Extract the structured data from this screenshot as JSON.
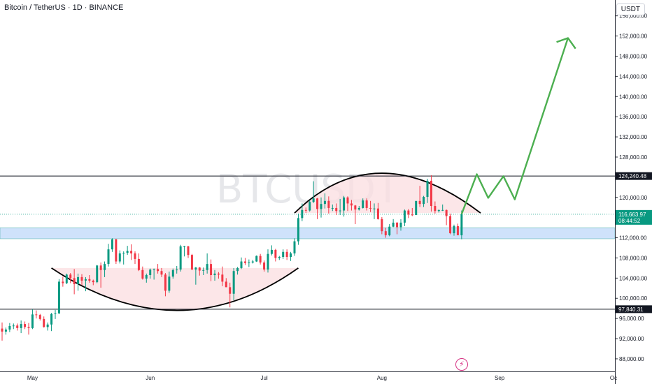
{
  "header": {
    "title": "Bitcoin / TetherUS · 1D · BINANCE",
    "currency": "USDT"
  },
  "watermark": "BTCUSDT",
  "colors": {
    "up": "#089981",
    "down": "#f23645",
    "resistance": "#131722",
    "support_zone": "#cfe2fb",
    "cup_fill": "#fbdde0",
    "projection": "#4caf50",
    "current_tag": "#089981"
  },
  "chart_data": {
    "type": "candlestick",
    "symbol": "BTCUSDT",
    "interval": "1D",
    "exchange": "BINANCE",
    "ylim": [
      85500,
      159000
    ],
    "y_ticks": [
      "88,000.00",
      "92,000.00",
      "96,000.00",
      "100,000.00",
      "104,000.00",
      "108,000.00",
      "112,000.00",
      "116,000.00",
      "120,000.00",
      "124,000.00",
      "128,000.00",
      "132,000.00",
      "136,000.00",
      "140,000.00",
      "144,000.00",
      "148,000.00",
      "152,000.00",
      "156,000.00"
    ],
    "x_ticks": [
      {
        "date": "2025-05-01",
        "label": "May"
      },
      {
        "date": "2025-06-01",
        "label": "Jun"
      },
      {
        "date": "2025-07-01",
        "label": "Jul"
      },
      {
        "date": "2025-08-01",
        "label": "Aug"
      },
      {
        "date": "2025-09-01",
        "label": "Sep"
      },
      {
        "date": "2025-10-01",
        "label": "Oc"
      }
    ],
    "xlim": [
      "2025-04-23",
      "2025-10-01"
    ],
    "candles": [
      [
        "2025-04-23",
        94000,
        95200,
        91600,
        93400
      ],
      [
        "2025-04-24",
        93400,
        94200,
        92800,
        93800
      ],
      [
        "2025-04-25",
        93800,
        95100,
        93300,
        94500
      ],
      [
        "2025-04-26",
        94500,
        95000,
        93900,
        94600
      ],
      [
        "2025-04-27",
        94600,
        95000,
        93600,
        94100
      ],
      [
        "2025-04-28",
        94100,
        95600,
        93100,
        94900
      ],
      [
        "2025-04-29",
        94900,
        95400,
        93900,
        94300
      ],
      [
        "2025-04-30",
        94300,
        95100,
        92800,
        94100
      ],
      [
        "2025-05-01",
        94100,
        97800,
        93900,
        96800
      ],
      [
        "2025-05-02",
        96800,
        97600,
        96000,
        96700
      ],
      [
        "2025-05-03",
        96700,
        96900,
        95600,
        95900
      ],
      [
        "2025-05-04",
        95900,
        96400,
        94200,
        94300
      ],
      [
        "2025-05-05",
        94300,
        95200,
        93600,
        94800
      ],
      [
        "2025-05-06",
        94800,
        97100,
        93500,
        96900
      ],
      [
        "2025-05-07",
        96900,
        97700,
        95900,
        97000
      ],
      [
        "2025-05-08",
        97000,
        103800,
        96900,
        103300
      ],
      [
        "2025-05-09",
        103300,
        104300,
        102300,
        103000
      ],
      [
        "2025-05-10",
        103000,
        104900,
        102800,
        104700
      ],
      [
        "2025-05-11",
        104700,
        105000,
        103000,
        104000
      ],
      [
        "2025-05-12",
        104000,
        105800,
        100800,
        102800
      ],
      [
        "2025-05-13",
        102800,
        104900,
        101500,
        104200
      ],
      [
        "2025-05-14",
        104200,
        104800,
        102600,
        103500
      ],
      [
        "2025-05-15",
        103500,
        104200,
        101400,
        103800
      ],
      [
        "2025-05-16",
        103800,
        104600,
        103100,
        103500
      ],
      [
        "2025-05-17",
        103500,
        103700,
        102600,
        103200
      ],
      [
        "2025-05-18",
        103200,
        106600,
        103000,
        106500
      ],
      [
        "2025-05-19",
        106500,
        107100,
        102100,
        105600
      ],
      [
        "2025-05-20",
        105600,
        107300,
        104200,
        106800
      ],
      [
        "2025-05-21",
        106800,
        110800,
        106300,
        109700
      ],
      [
        "2025-05-22",
        109700,
        111900,
        109200,
        111700
      ],
      [
        "2025-05-23",
        111700,
        111800,
        106800,
        107300
      ],
      [
        "2025-05-24",
        107300,
        109500,
        106900,
        108900
      ],
      [
        "2025-05-25",
        108900,
        109300,
        106700,
        109000
      ],
      [
        "2025-05-26",
        109000,
        110400,
        108600,
        109400
      ],
      [
        "2025-05-27",
        109400,
        110700,
        107600,
        108900
      ],
      [
        "2025-05-28",
        108900,
        109300,
        106800,
        107800
      ],
      [
        "2025-05-29",
        107800,
        108900,
        105400,
        105600
      ],
      [
        "2025-05-30",
        105600,
        106300,
        103700,
        103900
      ],
      [
        "2025-05-31",
        103900,
        104900,
        103100,
        104600
      ],
      [
        "2025-06-01",
        104600,
        105900,
        103900,
        105700
      ],
      [
        "2025-06-02",
        105700,
        105900,
        103700,
        105800
      ],
      [
        "2025-06-03",
        105800,
        106800,
        104900,
        105400
      ],
      [
        "2025-06-04",
        105400,
        106000,
        104200,
        104700
      ],
      [
        "2025-06-05",
        104700,
        105000,
        100400,
        101500
      ],
      [
        "2025-06-06",
        101500,
        105300,
        101100,
        104300
      ],
      [
        "2025-06-07",
        104300,
        105900,
        103900,
        105600
      ],
      [
        "2025-06-08",
        105600,
        106400,
        104900,
        105700
      ],
      [
        "2025-06-09",
        105700,
        110600,
        105300,
        110300
      ],
      [
        "2025-06-10",
        110300,
        110400,
        108300,
        110300
      ],
      [
        "2025-06-11",
        110300,
        110400,
        108000,
        108600
      ],
      [
        "2025-06-12",
        108600,
        108800,
        105600,
        105700
      ],
      [
        "2025-06-13",
        105700,
        106200,
        102700,
        106100
      ],
      [
        "2025-06-14",
        106100,
        106200,
        104500,
        105500
      ],
      [
        "2025-06-15",
        105500,
        106100,
        104600,
        105600
      ],
      [
        "2025-06-16",
        105600,
        108900,
        104900,
        106800
      ],
      [
        "2025-06-17",
        106800,
        107700,
        103400,
        104600
      ],
      [
        "2025-06-18",
        104600,
        105600,
        103500,
        104900
      ],
      [
        "2025-06-19",
        104900,
        105200,
        103900,
        104700
      ],
      [
        "2025-06-20",
        104700,
        106300,
        102400,
        103300
      ],
      [
        "2025-06-21",
        103300,
        104000,
        102200,
        102200
      ],
      [
        "2025-06-22",
        102200,
        103100,
        98200,
        100900
      ],
      [
        "2025-06-23",
        100900,
        106000,
        99600,
        105400
      ],
      [
        "2025-06-24",
        105400,
        106200,
        104700,
        106000
      ],
      [
        "2025-06-25",
        106000,
        108100,
        105800,
        107300
      ],
      [
        "2025-06-26",
        107300,
        108000,
        106600,
        107000
      ],
      [
        "2025-06-27",
        107000,
        107700,
        106200,
        107100
      ],
      [
        "2025-06-28",
        107100,
        107600,
        106900,
        107300
      ],
      [
        "2025-06-29",
        107300,
        108500,
        107200,
        108400
      ],
      [
        "2025-06-30",
        108400,
        108800,
        106700,
        107100
      ],
      [
        "2025-07-01",
        107100,
        107500,
        105300,
        105700
      ],
      [
        "2025-07-02",
        105700,
        109700,
        105100,
        108800
      ],
      [
        "2025-07-03",
        108800,
        110500,
        108500,
        109600
      ],
      [
        "2025-07-04",
        109600,
        109800,
        107300,
        108000
      ],
      [
        "2025-07-05",
        108000,
        108400,
        107600,
        108200
      ],
      [
        "2025-07-06",
        108200,
        109700,
        107800,
        109200
      ],
      [
        "2025-07-07",
        109200,
        109700,
        107600,
        108200
      ],
      [
        "2025-07-08",
        108200,
        109200,
        107400,
        108900
      ],
      [
        "2025-07-09",
        108900,
        111900,
        108400,
        111300
      ],
      [
        "2025-07-10",
        111300,
        116800,
        110600,
        115900
      ],
      [
        "2025-07-11",
        115900,
        118800,
        115300,
        117500
      ],
      [
        "2025-07-12",
        117500,
        118000,
        116900,
        117400
      ],
      [
        "2025-07-13",
        117400,
        119400,
        117200,
        119100
      ],
      [
        "2025-07-14",
        119100,
        123200,
        118900,
        119800
      ],
      [
        "2025-07-15",
        119800,
        119900,
        115700,
        117700
      ],
      [
        "2025-07-16",
        117700,
        120000,
        116000,
        118700
      ],
      [
        "2025-07-17",
        118700,
        120800,
        117800,
        119300
      ],
      [
        "2025-07-18",
        119300,
        120200,
        116800,
        117900
      ],
      [
        "2025-07-19",
        117900,
        118600,
        117300,
        117900
      ],
      [
        "2025-07-20",
        117900,
        118800,
        116500,
        117300
      ],
      [
        "2025-07-21",
        117300,
        119700,
        116500,
        117400
      ],
      [
        "2025-07-22",
        117400,
        120300,
        116200,
        120000
      ],
      [
        "2025-07-23",
        120000,
        120200,
        117300,
        118800
      ],
      [
        "2025-07-24",
        118800,
        119500,
        117400,
        118400
      ],
      [
        "2025-07-25",
        118400,
        118500,
        114700,
        117600
      ],
      [
        "2025-07-26",
        117600,
        118300,
        117400,
        117900
      ],
      [
        "2025-07-27",
        117900,
        119800,
        117800,
        119400
      ],
      [
        "2025-07-28",
        119400,
        119800,
        117400,
        117900
      ],
      [
        "2025-07-29",
        117900,
        119300,
        117100,
        117800
      ],
      [
        "2025-07-30",
        117800,
        118800,
        115700,
        117800
      ],
      [
        "2025-07-31",
        117800,
        118900,
        115600,
        115700
      ],
      [
        "2025-08-01",
        115700,
        116100,
        112700,
        113300
      ],
      [
        "2025-08-02",
        113300,
        114000,
        112000,
        112500
      ],
      [
        "2025-08-03",
        112500,
        114700,
        112300,
        114200
      ],
      [
        "2025-08-04",
        114200,
        115700,
        114100,
        115000
      ],
      [
        "2025-08-05",
        115000,
        115100,
        112700,
        114100
      ],
      [
        "2025-08-06",
        114100,
        115700,
        113400,
        115000
      ],
      [
        "2025-08-07",
        115000,
        117600,
        114300,
        117400
      ],
      [
        "2025-08-08",
        117400,
        117700,
        115900,
        116600
      ],
      [
        "2025-08-09",
        116600,
        117900,
        116300,
        116500
      ],
      [
        "2025-08-10",
        116500,
        119300,
        116500,
        119300
      ],
      [
        "2025-08-11",
        119300,
        122300,
        118100,
        118700
      ],
      [
        "2025-08-12",
        118700,
        120300,
        118100,
        120100
      ],
      [
        "2025-08-13",
        120100,
        123700,
        118900,
        123300
      ],
      [
        "2025-08-14",
        123300,
        124400,
        117200,
        118300
      ],
      [
        "2025-08-15",
        118300,
        119200,
        116800,
        117300
      ],
      [
        "2025-08-16",
        117300,
        117600,
        117000,
        117500
      ],
      [
        "2025-08-17",
        117500,
        118600,
        117300,
        117500
      ],
      [
        "2025-08-18",
        117500,
        117600,
        114500,
        116300
      ],
      [
        "2025-08-19",
        116300,
        116800,
        112700,
        112900
      ],
      [
        "2025-08-20",
        112900,
        114600,
        112400,
        114300
      ],
      [
        "2025-08-21",
        114300,
        114800,
        112600,
        112500
      ],
      [
        "2025-08-22",
        112500,
        117400,
        111700,
        116700
      ]
    ],
    "levels": [
      {
        "price": 124240.48,
        "label": "124,240.48"
      },
      {
        "price": 97840.31,
        "label": "97,840.31"
      }
    ],
    "support_zone": [
      111800,
      114000
    ],
    "current_price": {
      "price": 116663.97,
      "label": "116,663.97",
      "countdown": "08:44:52"
    },
    "cup_arc": {
      "start": [
        "2025-05-06",
        106000
      ],
      "bottom": [
        "2025-06-08",
        97600
      ],
      "end": [
        "2025-07-10",
        106000
      ]
    },
    "dome_arc": {
      "start": [
        "2025-07-09",
        116900
      ],
      "top": [
        "2025-08-01",
        124800
      ],
      "end": [
        "2025-08-27",
        116900
      ]
    },
    "projection": [
      [
        "2025-08-22",
        116700
      ],
      [
        "2025-08-26",
        124600
      ],
      [
        "2025-08-29",
        119900
      ],
      [
        "2025-09-02",
        124200
      ],
      [
        "2025-09-05",
        119600
      ],
      [
        "2025-09-19",
        151600
      ],
      [
        "2025-09-21",
        149500
      ]
    ],
    "projection_arrow_head": [
      [
        "2025-09-16",
        150800
      ],
      [
        "2025-09-19",
        151600
      ],
      [
        "2025-09-21",
        149500
      ]
    ],
    "grid": false
  }
}
